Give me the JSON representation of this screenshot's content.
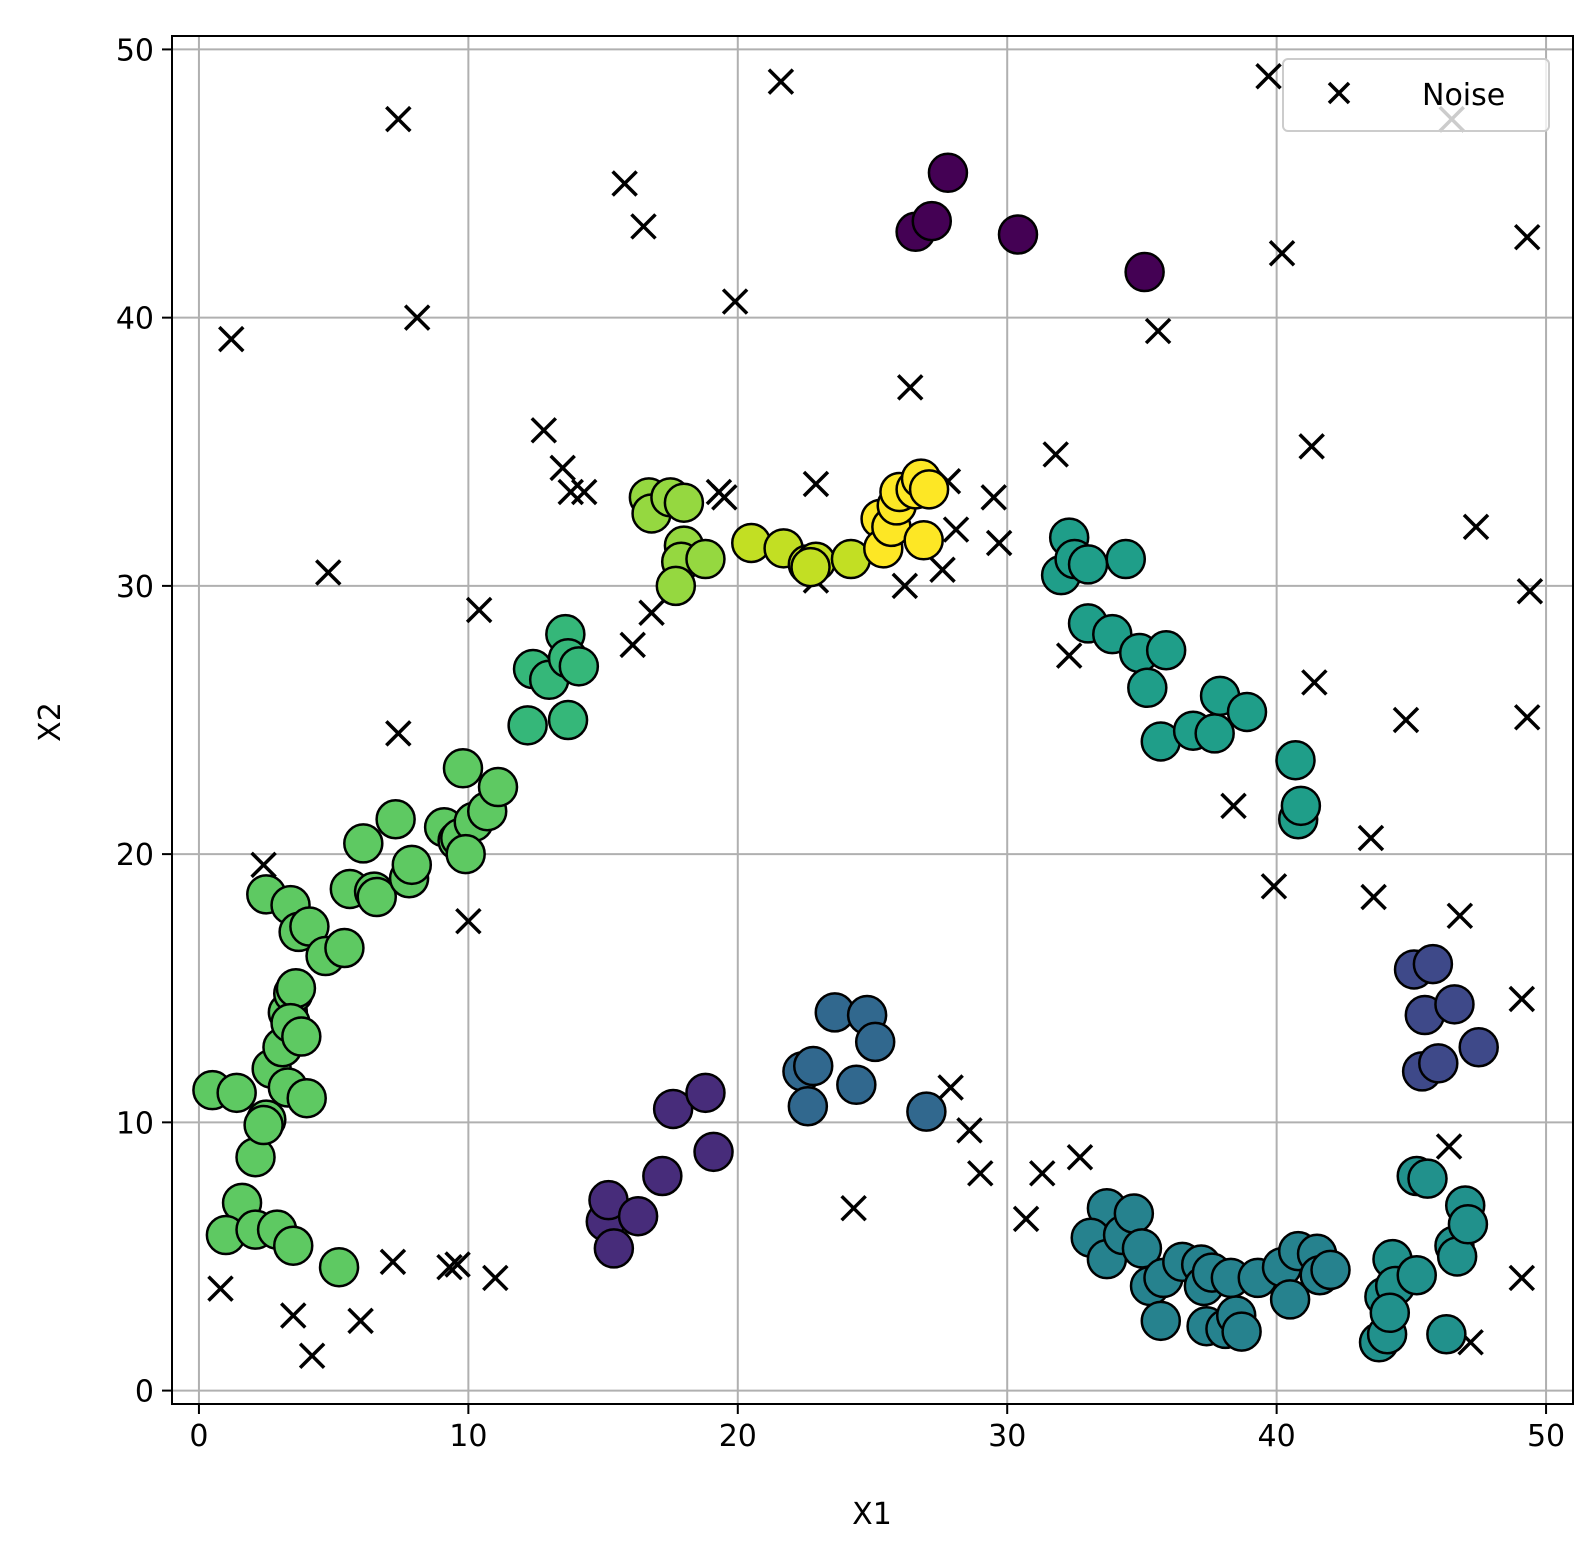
{
  "chart_data": {
    "type": "scatter",
    "title": "",
    "xlabel": "X1",
    "ylabel": "X2",
    "xlim": [
      -1,
      51
    ],
    "ylim": [
      -0.5,
      50.5
    ],
    "xticks": [
      0,
      10,
      20,
      30,
      40,
      50
    ],
    "yticks": [
      0,
      10,
      20,
      30,
      40,
      50
    ],
    "grid": true,
    "legend": {
      "position": "top-right",
      "entries": [
        "Noise"
      ]
    },
    "noise_color": "#000000",
    "cluster_edge_color": "#000000",
    "clusters": [
      {
        "color": "#440154",
        "points": [
          [
            27.8,
            45.4
          ],
          [
            26.6,
            43.2
          ],
          [
            27.2,
            43.6
          ],
          [
            30.4,
            43.1
          ],
          [
            35.1,
            41.7
          ]
        ]
      },
      {
        "color": "#472c7a",
        "points": [
          [
            15.1,
            6.3
          ],
          [
            15.2,
            7.1
          ],
          [
            16.3,
            6.5
          ],
          [
            15.4,
            5.3
          ],
          [
            17.2,
            8.0
          ],
          [
            17.6,
            10.5
          ],
          [
            18.8,
            11.1
          ],
          [
            19.1,
            8.9
          ]
        ]
      },
      {
        "color": "#3e4989",
        "points": [
          [
            45.1,
            15.7
          ],
          [
            45.8,
            15.9
          ],
          [
            45.5,
            14.0
          ],
          [
            46.6,
            14.4
          ],
          [
            47.5,
            12.8
          ],
          [
            45.4,
            11.9
          ],
          [
            46.0,
            12.2
          ]
        ]
      },
      {
        "color": "#31688e",
        "points": [
          [
            22.4,
            11.9
          ],
          [
            22.8,
            12.1
          ],
          [
            22.6,
            10.6
          ],
          [
            23.6,
            14.1
          ],
          [
            24.8,
            14.0
          ],
          [
            25.1,
            13.0
          ],
          [
            24.4,
            11.4
          ],
          [
            27.0,
            10.4
          ]
        ]
      },
      {
        "color": "#26828e",
        "points": [
          [
            33.7,
            6.8
          ],
          [
            33.1,
            5.7
          ],
          [
            33.7,
            4.9
          ],
          [
            34.3,
            5.8
          ],
          [
            34.7,
            6.6
          ],
          [
            35.0,
            5.3
          ],
          [
            35.3,
            3.9
          ],
          [
            35.8,
            4.2
          ],
          [
            35.7,
            2.6
          ],
          [
            36.5,
            4.8
          ],
          [
            37.2,
            4.7
          ],
          [
            37.3,
            3.9
          ],
          [
            37.6,
            4.4
          ],
          [
            37.4,
            2.4
          ],
          [
            38.1,
            2.3
          ],
          [
            38.3,
            4.2
          ],
          [
            38.5,
            2.8
          ],
          [
            38.7,
            2.2
          ],
          [
            39.3,
            4.2
          ],
          [
            40.2,
            4.6
          ],
          [
            40.5,
            3.4
          ],
          [
            40.8,
            5.2
          ],
          [
            41.5,
            5.1
          ],
          [
            41.6,
            4.3
          ],
          [
            42.0,
            4.5
          ]
        ]
      },
      {
        "color": "#21918c",
        "points": [
          [
            43.8,
            1.8
          ],
          [
            44.1,
            2.1
          ],
          [
            44.0,
            3.5
          ],
          [
            44.3,
            4.9
          ],
          [
            44.4,
            3.9
          ],
          [
            44.2,
            2.9
          ],
          [
            45.2,
            4.3
          ],
          [
            45.2,
            8.0
          ],
          [
            45.6,
            7.9
          ],
          [
            46.3,
            2.1
          ],
          [
            46.6,
            5.4
          ],
          [
            46.7,
            5.0
          ],
          [
            47.0,
            6.9
          ],
          [
            47.1,
            6.2
          ]
        ]
      },
      {
        "color": "#1f9e89",
        "points": [
          [
            40.7,
            23.5
          ],
          [
            40.8,
            21.3
          ],
          [
            40.9,
            21.8
          ],
          [
            32.0,
            30.4
          ],
          [
            32.3,
            31.8
          ],
          [
            32.5,
            31.0
          ],
          [
            33.0,
            30.8
          ],
          [
            34.4,
            31.0
          ],
          [
            33.0,
            28.6
          ],
          [
            33.9,
            28.2
          ],
          [
            34.9,
            27.5
          ],
          [
            35.2,
            26.2
          ],
          [
            35.9,
            27.6
          ],
          [
            35.7,
            24.2
          ],
          [
            36.9,
            24.6
          ],
          [
            37.7,
            24.5
          ],
          [
            37.9,
            25.9
          ],
          [
            38.9,
            25.3
          ]
        ]
      },
      {
        "color": "#35b779",
        "points": [
          [
            12.2,
            24.8
          ],
          [
            12.4,
            26.9
          ],
          [
            13.0,
            26.5
          ],
          [
            13.6,
            28.2
          ],
          [
            13.7,
            27.3
          ],
          [
            13.7,
            25.0
          ],
          [
            14.1,
            27.0
          ]
        ]
      },
      {
        "color": "#5ec962",
        "points": [
          [
            0.5,
            11.2
          ],
          [
            1.4,
            11.1
          ],
          [
            2.1,
            8.7
          ],
          [
            2.5,
            10.1
          ],
          [
            2.4,
            9.9
          ],
          [
            1.6,
            7.0
          ],
          [
            1.0,
            5.8
          ],
          [
            2.1,
            6.0
          ],
          [
            2.9,
            6.0
          ],
          [
            3.5,
            5.4
          ],
          [
            5.2,
            4.6
          ],
          [
            2.7,
            12.0
          ],
          [
            3.1,
            12.8
          ],
          [
            3.3,
            11.3
          ],
          [
            3.3,
            14.1
          ],
          [
            3.5,
            14.8
          ],
          [
            3.6,
            15.0
          ],
          [
            3.4,
            13.7
          ],
          [
            3.8,
            13.2
          ],
          [
            4.0,
            10.9
          ],
          [
            2.5,
            18.5
          ],
          [
            3.4,
            18.1
          ],
          [
            3.7,
            17.1
          ],
          [
            4.1,
            17.3
          ],
          [
            4.7,
            16.2
          ],
          [
            5.4,
            16.5
          ],
          [
            5.6,
            18.7
          ],
          [
            6.5,
            18.6
          ],
          [
            6.6,
            18.4
          ],
          [
            6.1,
            20.4
          ],
          [
            7.3,
            21.3
          ],
          [
            7.8,
            19.1
          ],
          [
            7.9,
            19.6
          ],
          [
            9.1,
            21.0
          ],
          [
            9.6,
            20.5
          ],
          [
            9.7,
            20.6
          ],
          [
            9.8,
            23.2
          ],
          [
            10.2,
            21.2
          ],
          [
            10.7,
            21.6
          ],
          [
            11.1,
            22.5
          ],
          [
            9.9,
            20.0
          ]
        ]
      },
      {
        "color": "#95d840",
        "points": [
          [
            16.7,
            33.3
          ],
          [
            16.8,
            32.7
          ],
          [
            17.5,
            33.3
          ],
          [
            18.0,
            33.1
          ],
          [
            18.0,
            31.5
          ],
          [
            17.9,
            30.9
          ],
          [
            17.7,
            30.0
          ],
          [
            18.8,
            31.0
          ]
        ]
      },
      {
        "color": "#c2df23",
        "points": [
          [
            20.5,
            31.6
          ],
          [
            21.7,
            31.4
          ],
          [
            22.6,
            30.8
          ],
          [
            22.9,
            30.9
          ],
          [
            22.7,
            30.7
          ],
          [
            24.2,
            31.0
          ]
        ]
      },
      {
        "color": "#fde725",
        "points": [
          [
            25.3,
            32.5
          ],
          [
            25.4,
            31.4
          ],
          [
            25.7,
            32.2
          ],
          [
            25.9,
            33.0
          ],
          [
            26.0,
            33.5
          ],
          [
            26.6,
            33.6
          ],
          [
            26.8,
            34.0
          ],
          [
            27.1,
            33.6
          ],
          [
            26.9,
            31.7
          ]
        ]
      }
    ],
    "noise": [
      [
        39.7,
        49.0
      ],
      [
        21.6,
        48.8
      ],
      [
        7.4,
        47.4
      ],
      [
        46.5,
        47.4
      ],
      [
        15.8,
        45.0
      ],
      [
        16.5,
        43.4
      ],
      [
        49.3,
        43.0
      ],
      [
        40.2,
        42.4
      ],
      [
        1.2,
        39.2
      ],
      [
        8.1,
        40.0
      ],
      [
        19.9,
        40.6
      ],
      [
        35.6,
        39.5
      ],
      [
        26.4,
        37.4
      ],
      [
        12.8,
        35.8
      ],
      [
        13.5,
        34.4
      ],
      [
        13.8,
        33.5
      ],
      [
        14.3,
        33.5
      ],
      [
        31.8,
        34.9
      ],
      [
        41.3,
        35.2
      ],
      [
        19.3,
        33.5
      ],
      [
        19.5,
        33.3
      ],
      [
        22.9,
        33.8
      ],
      [
        27.8,
        33.9
      ],
      [
        28.1,
        32.1
      ],
      [
        29.5,
        33.3
      ],
      [
        29.7,
        31.6
      ],
      [
        47.4,
        32.2
      ],
      [
        4.8,
        30.5
      ],
      [
        10.4,
        29.1
      ],
      [
        16.8,
        29.0
      ],
      [
        16.1,
        27.8
      ],
      [
        22.9,
        30.2
      ],
      [
        26.2,
        30.0
      ],
      [
        27.6,
        30.6
      ],
      [
        32.3,
        27.4
      ],
      [
        49.4,
        29.8
      ],
      [
        41.4,
        26.4
      ],
      [
        44.8,
        25.0
      ],
      [
        49.3,
        25.1
      ],
      [
        7.4,
        24.5
      ],
      [
        38.4,
        21.8
      ],
      [
        2.4,
        19.6
      ],
      [
        39.9,
        18.8
      ],
      [
        43.5,
        20.6
      ],
      [
        43.6,
        18.4
      ],
      [
        46.8,
        17.7
      ],
      [
        10.0,
        17.5
      ],
      [
        49.1,
        14.6
      ],
      [
        27.9,
        11.3
      ],
      [
        28.6,
        9.7
      ],
      [
        46.4,
        9.1
      ],
      [
        29.0,
        8.1
      ],
      [
        31.3,
        8.1
      ],
      [
        32.7,
        8.7
      ],
      [
        24.3,
        6.8
      ],
      [
        30.7,
        6.4
      ],
      [
        0.8,
        3.8
      ],
      [
        7.2,
        4.8
      ],
      [
        9.3,
        4.6
      ],
      [
        9.6,
        4.7
      ],
      [
        11.0,
        4.2
      ],
      [
        3.5,
        2.8
      ],
      [
        6.0,
        2.6
      ],
      [
        4.2,
        1.3
      ],
      [
        47.2,
        1.8
      ],
      [
        49.1,
        4.2
      ]
    ]
  }
}
